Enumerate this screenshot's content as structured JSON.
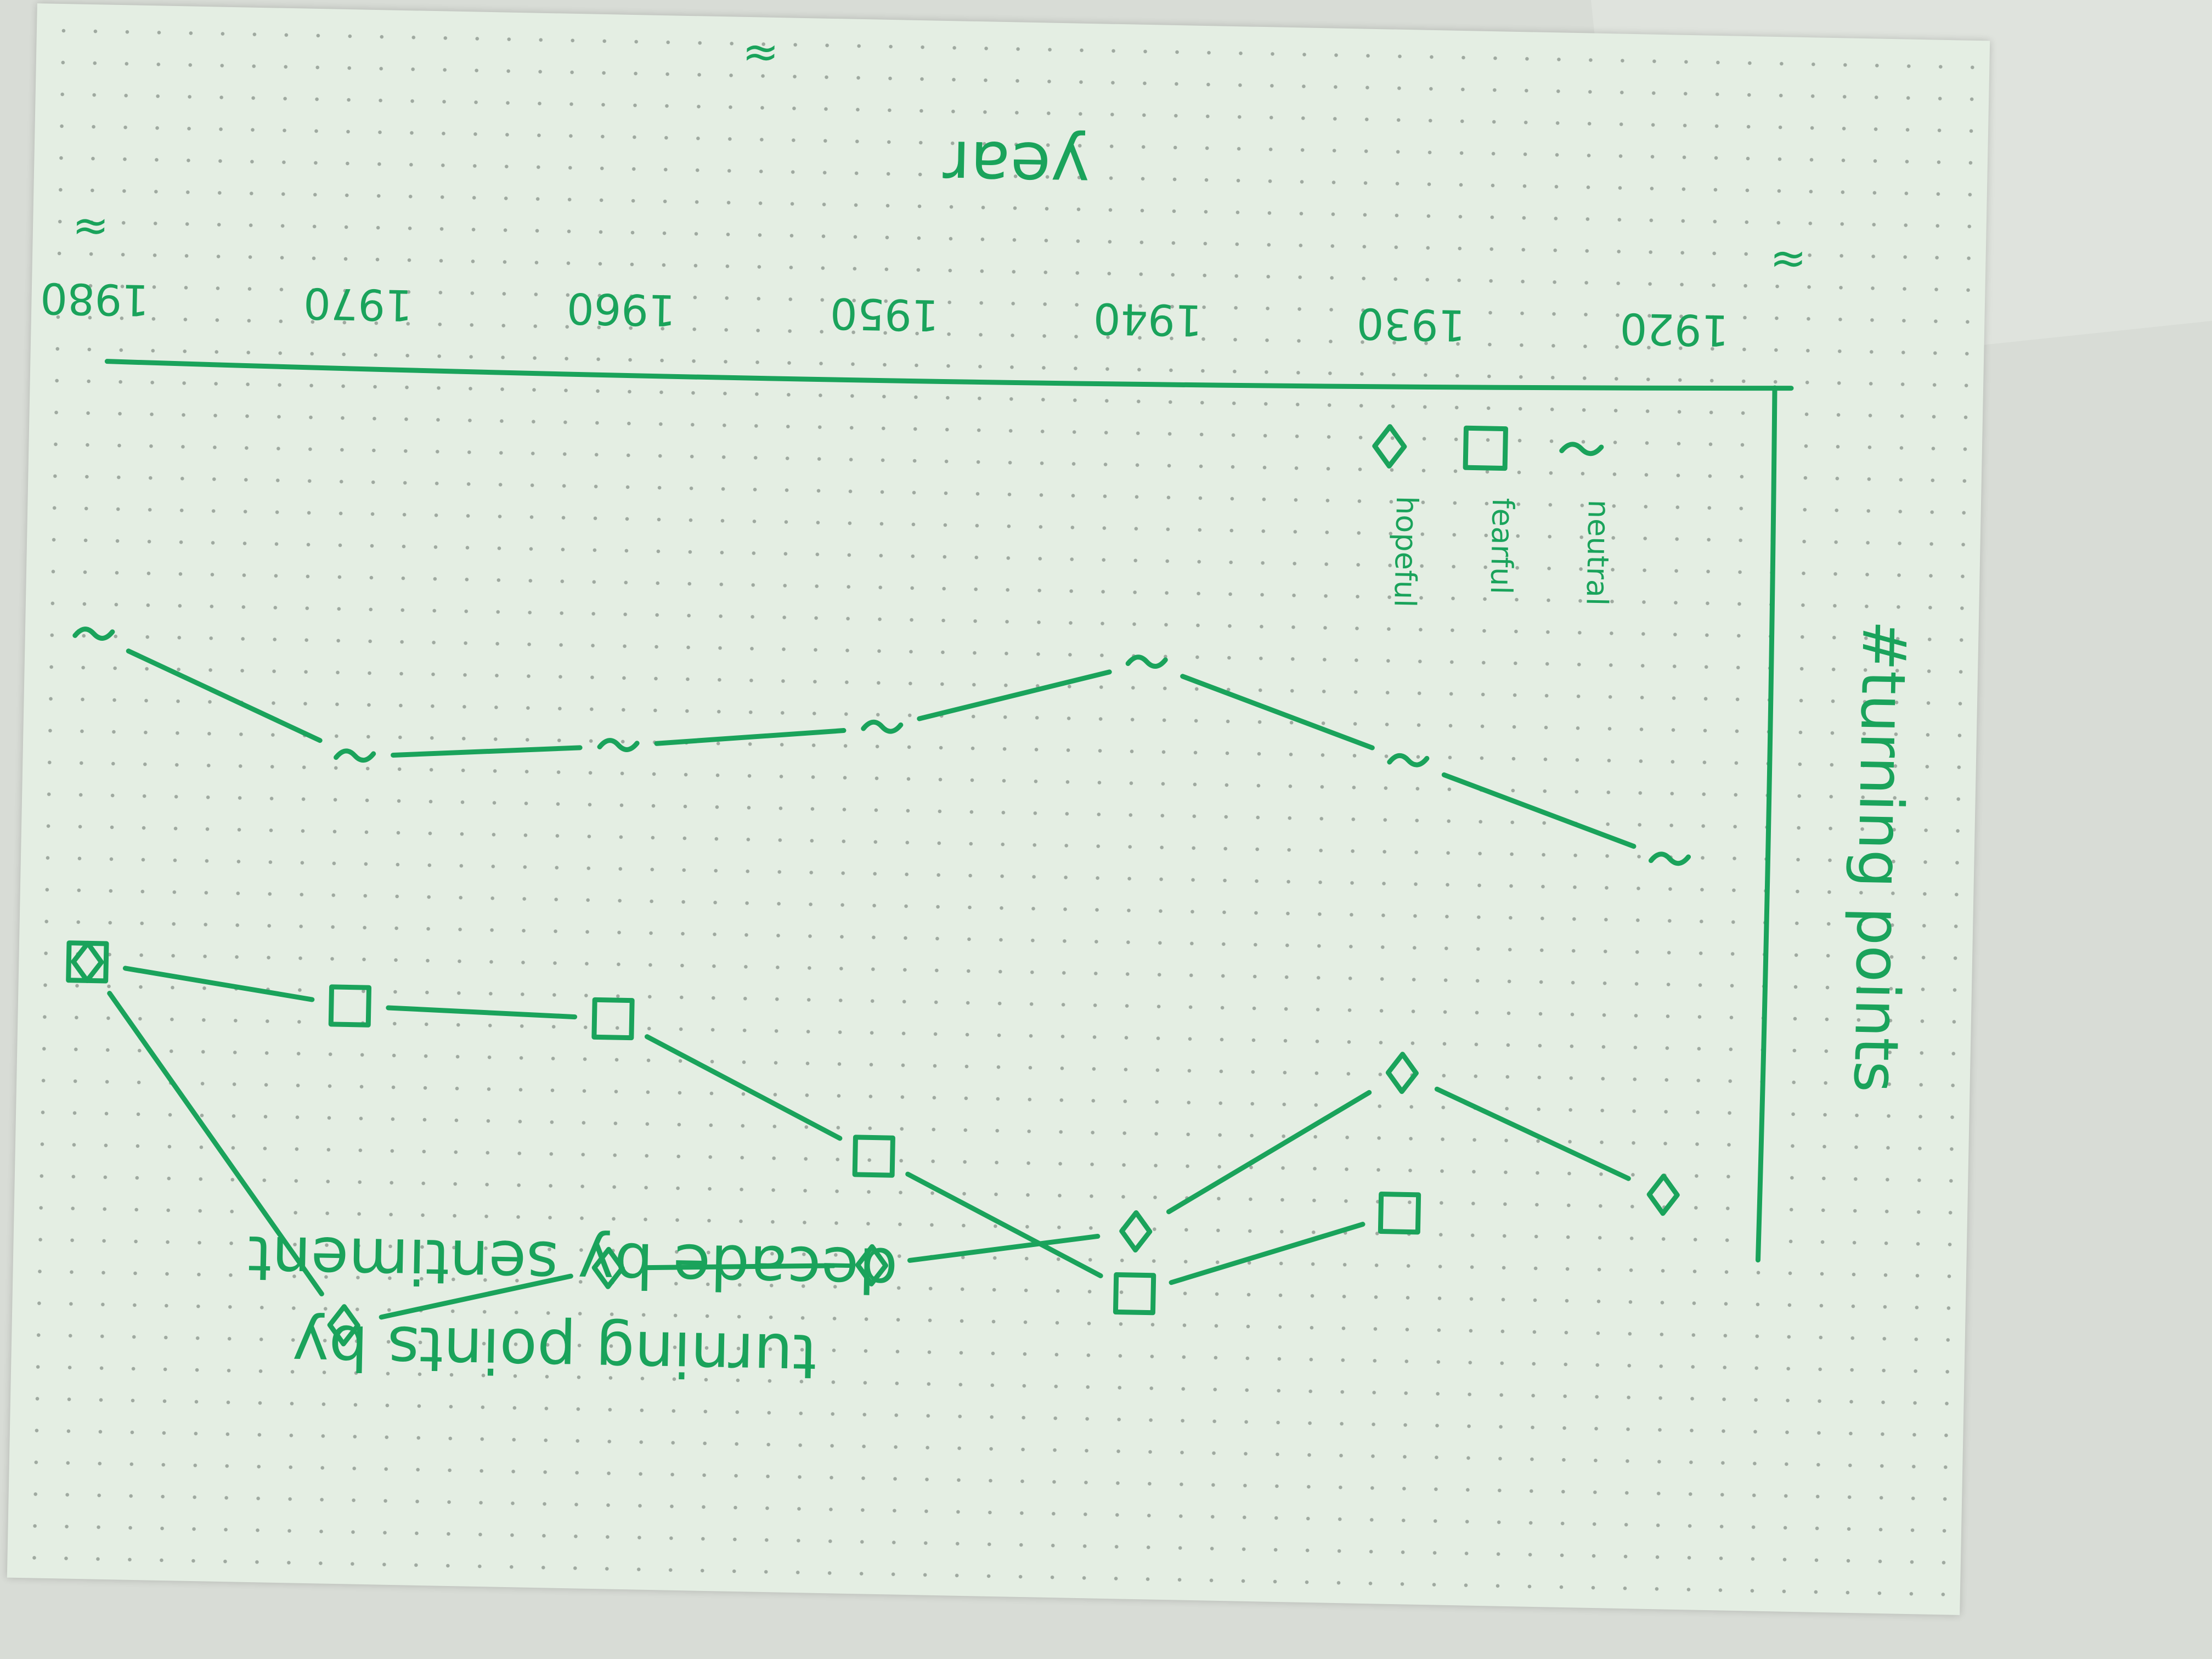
{
  "chart_data": {
    "type": "line",
    "title": "turning points by decade by sentiment",
    "ylabel": "#turning points",
    "xlabel": "year",
    "x": [
      "1920",
      "1930",
      "1940",
      "1950",
      "1960",
      "1970",
      "1980"
    ],
    "x_break_symbol": "≈",
    "series": [
      {
        "name": "hopeful",
        "marker": "diamond",
        "values": [
          3.2,
          1.7,
          3.8,
          4.3,
          4.4,
          5.2,
          0.6
        ]
      },
      {
        "name": "fearful",
        "marker": "square",
        "values": [
          null,
          3.5,
          4.6,
          2.9,
          1.2,
          1.1,
          0.6
        ]
      },
      {
        "name": "neutral",
        "marker": "tilde",
        "values": [
          -1.1,
          -2.3,
          -3.5,
          -2.6,
          -2.3,
          -2.1,
          -3.6
        ]
      }
    ],
    "legend": {
      "position": "bottom-left"
    },
    "colors": {
      "ink": "#1aa35b",
      "paper": "#e4eee3"
    }
  }
}
